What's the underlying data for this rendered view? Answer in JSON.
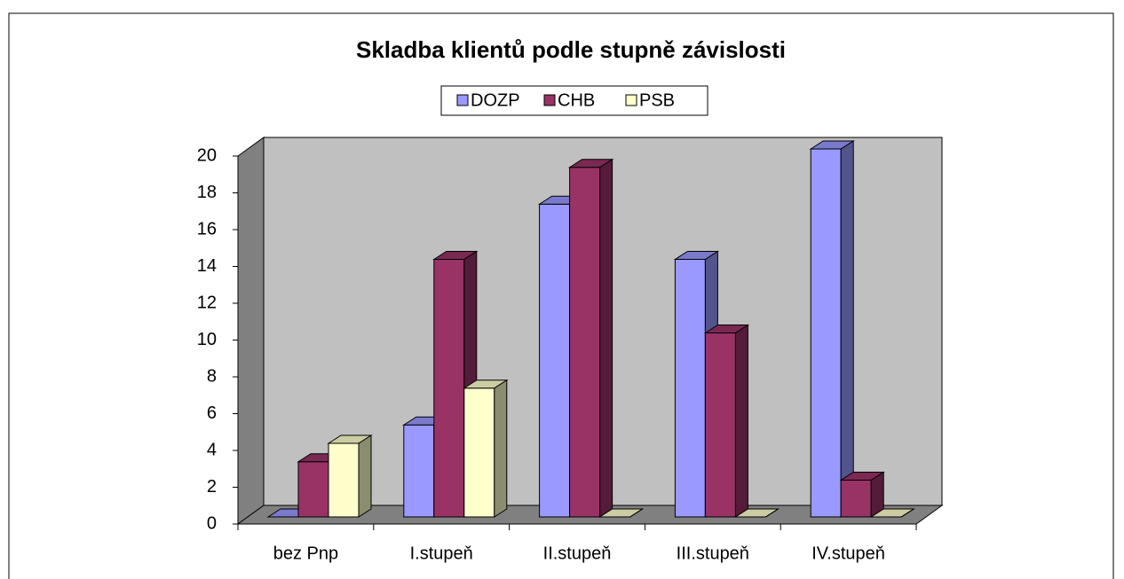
{
  "chart_data": {
    "type": "bar3d",
    "title": "Skladba klientů podle stupně závislosti",
    "categories": [
      "bez Pnp",
      "I.stupeň",
      "II.stupeň",
      "III.stupeň",
      "IV.stupeň"
    ],
    "series": [
      {
        "name": "DOZP",
        "color": "#9999ff",
        "values": [
          0,
          5,
          17,
          14,
          20
        ]
      },
      {
        "name": "CHB",
        "color": "#993366",
        "values": [
          3,
          14,
          19,
          10,
          2
        ]
      },
      {
        "name": "PSB",
        "color": "#ffffcc",
        "values": [
          4,
          7,
          0,
          0,
          0
        ]
      }
    ],
    "ylim": [
      0,
      20
    ],
    "yticks": [
      0,
      2,
      4,
      6,
      8,
      10,
      12,
      14,
      16,
      18,
      20
    ],
    "grid": false,
    "legend": "top"
  }
}
